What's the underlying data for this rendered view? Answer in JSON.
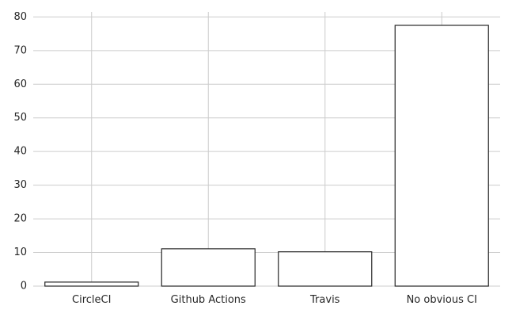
{
  "chart_data": {
    "type": "bar",
    "title": "",
    "xlabel": "",
    "ylabel": "",
    "categories": [
      "CircleCI",
      "Github Actions",
      "Travis",
      "No obvious CI"
    ],
    "values": [
      1.2,
      11.1,
      10.2,
      77.5
    ],
    "ylim": [
      0,
      81.5
    ],
    "yticks": [
      0,
      10,
      20,
      30,
      40,
      50,
      60,
      70,
      80
    ],
    "grid": true,
    "bar_fill": "#ffffff",
    "bar_edge": "#262626",
    "grid_color": "#cccccc"
  }
}
